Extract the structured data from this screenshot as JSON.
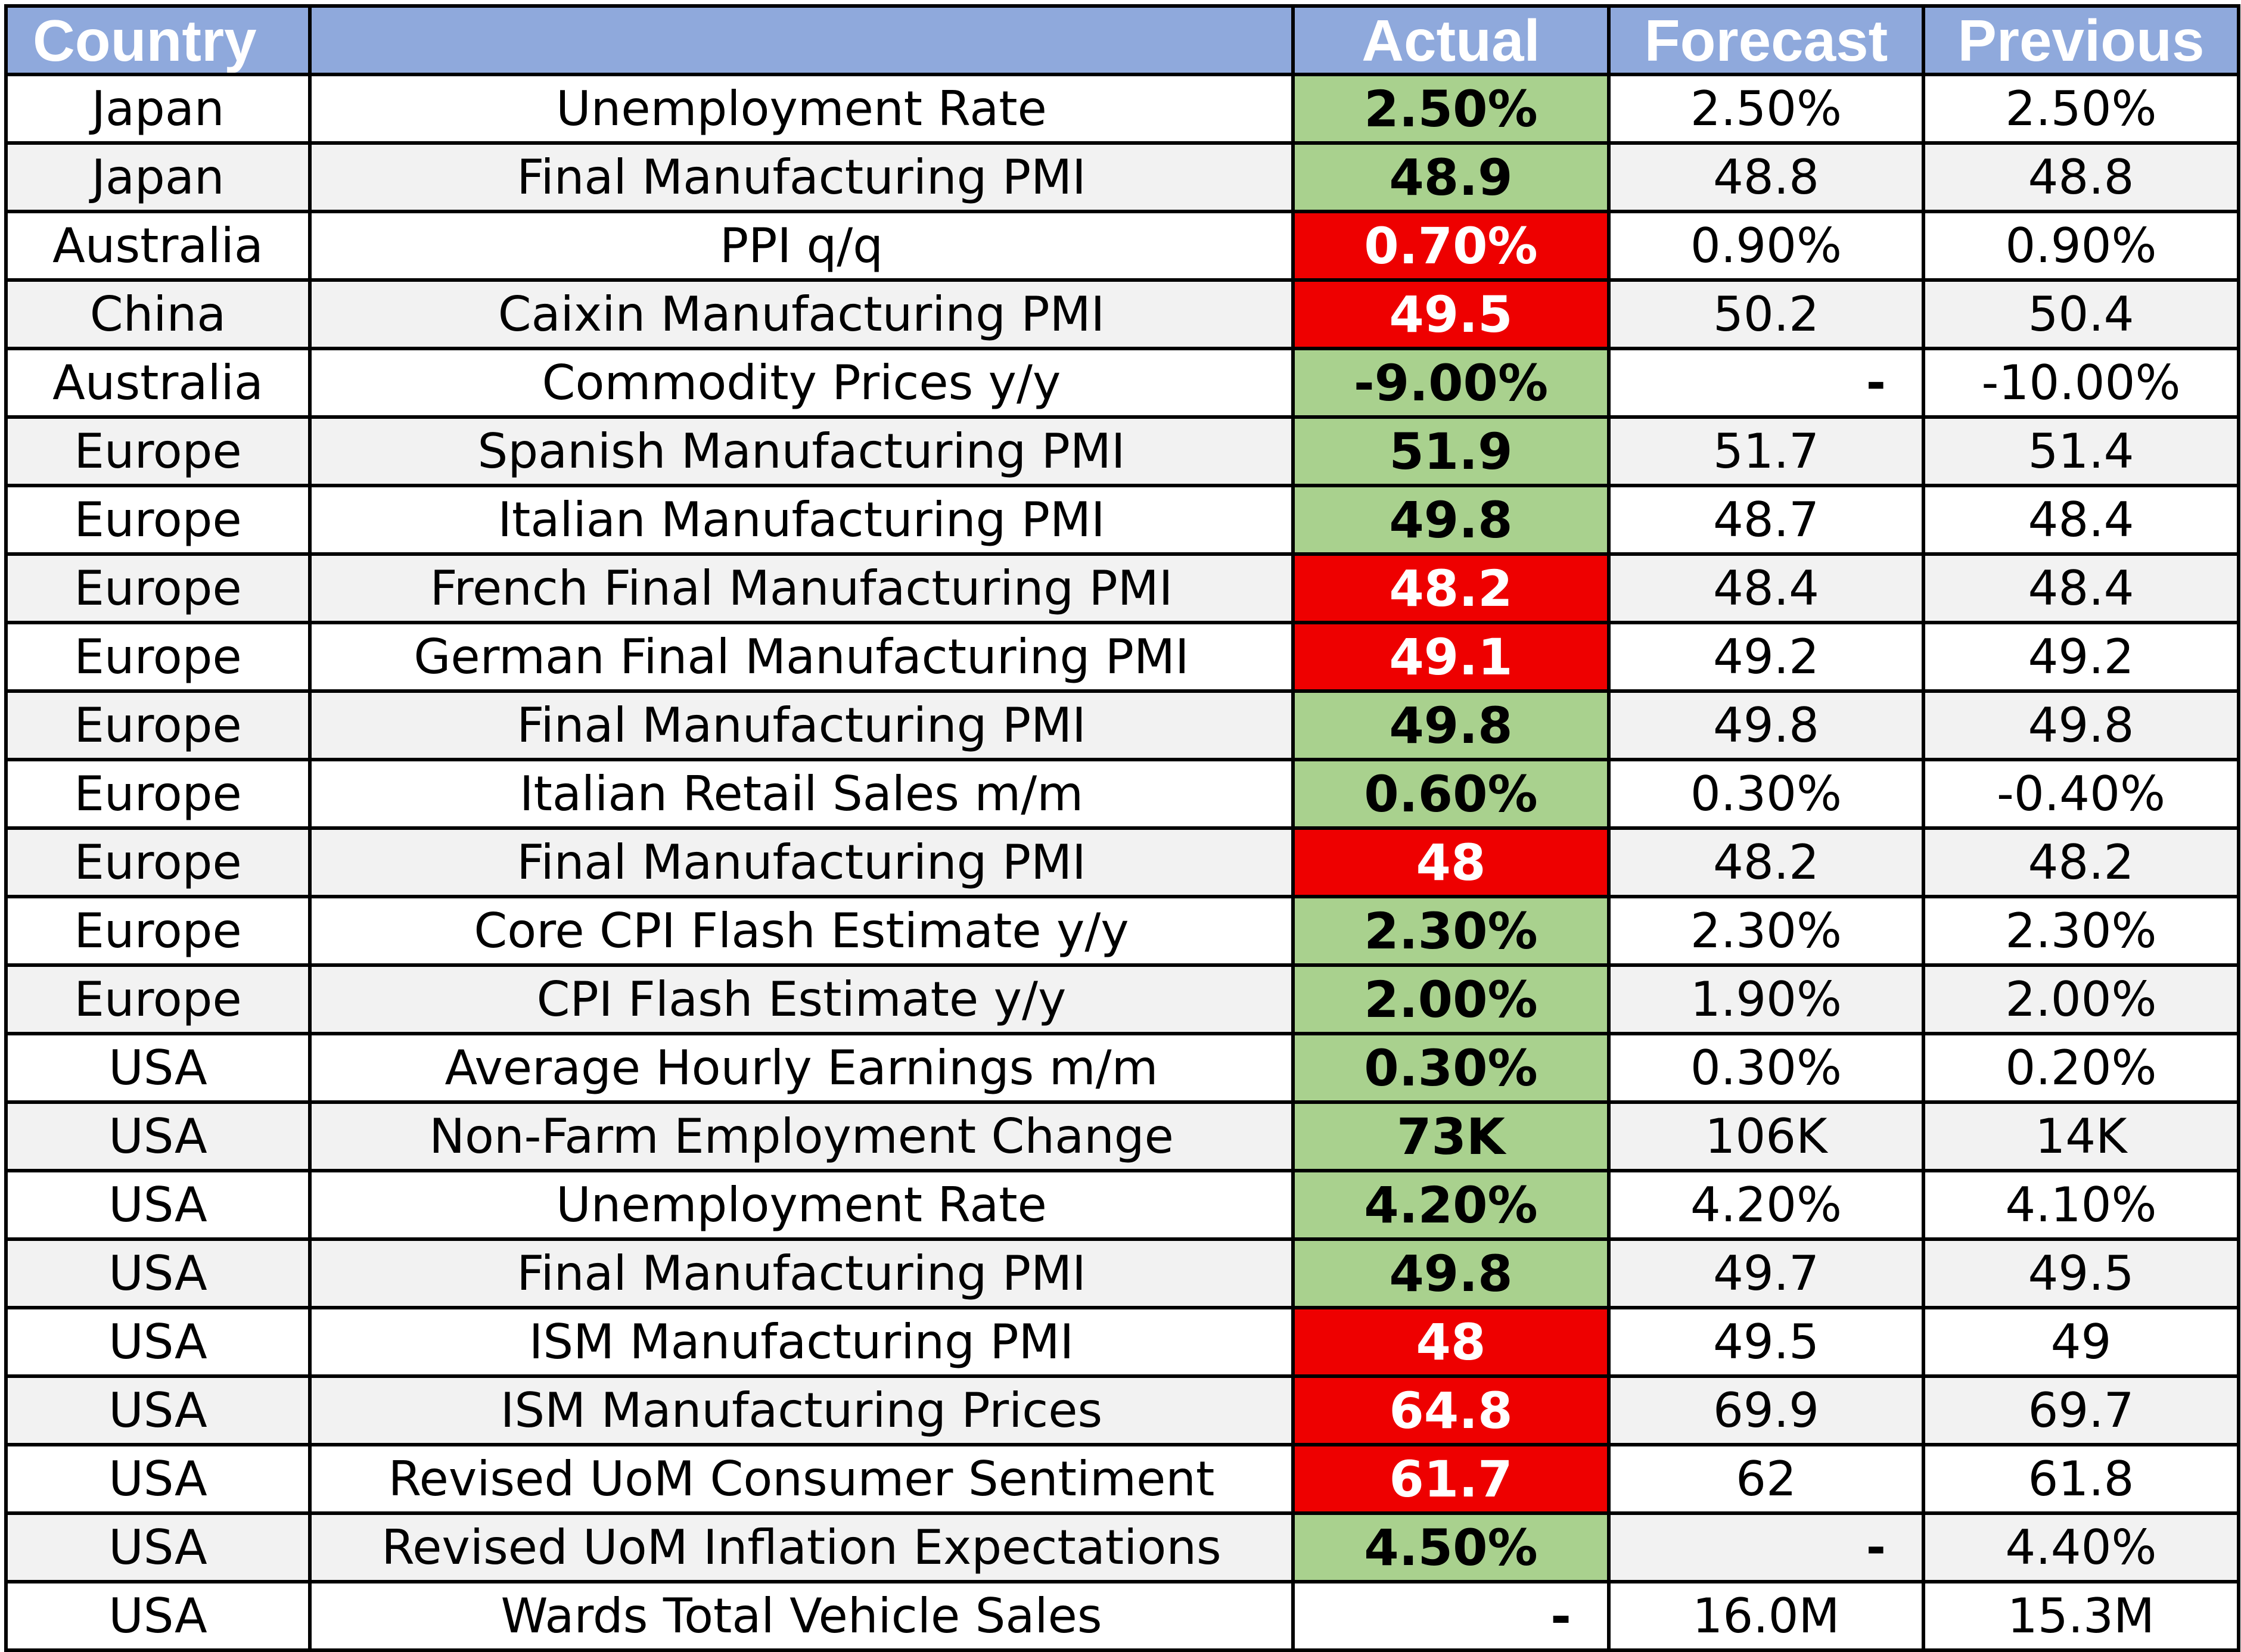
{
  "colors": {
    "header_bg": "#8fa9dc",
    "beat": "#a9d18e",
    "miss": "#ee0000",
    "stripe": "#f2f2f2"
  },
  "headers": {
    "country": "Country",
    "event": "",
    "actual": "Actual",
    "forecast": "Forecast",
    "previous": "Previous"
  },
  "rows": [
    {
      "country": "Japan",
      "event": "Unemployment Rate",
      "actual": "2.50%",
      "forecast": "2.50%",
      "previous": "2.50%",
      "status": "beat"
    },
    {
      "country": "Japan",
      "event": "Final Manufacturing PMI",
      "actual": "48.9",
      "forecast": "48.8",
      "previous": "48.8",
      "status": "beat"
    },
    {
      "country": "Australia",
      "event": "PPI q/q",
      "actual": "0.70%",
      "forecast": "0.90%",
      "previous": "0.90%",
      "status": "miss"
    },
    {
      "country": "China",
      "event": "Caixin Manufacturing PMI",
      "actual": "49.5",
      "forecast": "50.2",
      "previous": "50.4",
      "status": "miss"
    },
    {
      "country": "Australia",
      "event": "Commodity Prices y/y",
      "actual": "-9.00%",
      "forecast": "-",
      "previous": "-10.00%",
      "status": "beat"
    },
    {
      "country": "Europe",
      "event": "Spanish Manufacturing PMI",
      "actual": "51.9",
      "forecast": "51.7",
      "previous": "51.4",
      "status": "beat"
    },
    {
      "country": "Europe",
      "event": "Italian Manufacturing PMI",
      "actual": "49.8",
      "forecast": "48.7",
      "previous": "48.4",
      "status": "beat"
    },
    {
      "country": "Europe",
      "event": "French Final Manufacturing PMI",
      "actual": "48.2",
      "forecast": "48.4",
      "previous": "48.4",
      "status": "miss"
    },
    {
      "country": "Europe",
      "event": "German Final Manufacturing PMI",
      "actual": "49.1",
      "forecast": "49.2",
      "previous": "49.2",
      "status": "miss"
    },
    {
      "country": "Europe",
      "event": "Final Manufacturing PMI",
      "actual": "49.8",
      "forecast": "49.8",
      "previous": "49.8",
      "status": "beat"
    },
    {
      "country": "Europe",
      "event": "Italian Retail Sales m/m",
      "actual": "0.60%",
      "forecast": "0.30%",
      "previous": "-0.40%",
      "status": "beat"
    },
    {
      "country": "Europe",
      "event": "Final Manufacturing PMI",
      "actual": "48",
      "forecast": "48.2",
      "previous": "48.2",
      "status": "miss"
    },
    {
      "country": "Europe",
      "event": "Core CPI Flash Estimate y/y",
      "actual": "2.30%",
      "forecast": "2.30%",
      "previous": "2.30%",
      "status": "beat"
    },
    {
      "country": "Europe",
      "event": "CPI Flash Estimate y/y",
      "actual": "2.00%",
      "forecast": "1.90%",
      "previous": "2.00%",
      "status": "beat"
    },
    {
      "country": "USA",
      "event": "Average Hourly Earnings m/m",
      "actual": "0.30%",
      "forecast": "0.30%",
      "previous": "0.20%",
      "status": "beat"
    },
    {
      "country": "USA",
      "event": "Non-Farm Employment Change",
      "actual": "73K",
      "forecast": "106K",
      "previous": "14K",
      "status": "beat"
    },
    {
      "country": "USA",
      "event": "Unemployment Rate",
      "actual": "4.20%",
      "forecast": "4.20%",
      "previous": "4.10%",
      "status": "beat"
    },
    {
      "country": "USA",
      "event": "Final Manufacturing PMI",
      "actual": "49.8",
      "forecast": "49.7",
      "previous": "49.5",
      "status": "beat"
    },
    {
      "country": "USA",
      "event": "ISM Manufacturing PMI",
      "actual": "48",
      "forecast": "49.5",
      "previous": "49",
      "status": "miss"
    },
    {
      "country": "USA",
      "event": "ISM Manufacturing Prices",
      "actual": "64.8",
      "forecast": "69.9",
      "previous": "69.7",
      "status": "miss"
    },
    {
      "country": "USA",
      "event": "Revised UoM Consumer Sentiment",
      "actual": "61.7",
      "forecast": "62",
      "previous": "61.8",
      "status": "miss"
    },
    {
      "country": "USA",
      "event": "Revised UoM Inflation Expectations",
      "actual": "4.50%",
      "forecast": "-",
      "previous": "4.40%",
      "status": "beat"
    },
    {
      "country": "USA",
      "event": "Wards Total Vehicle Sales",
      "actual": "-",
      "forecast": "16.0M",
      "previous": "15.3M",
      "status": "neutral"
    }
  ]
}
